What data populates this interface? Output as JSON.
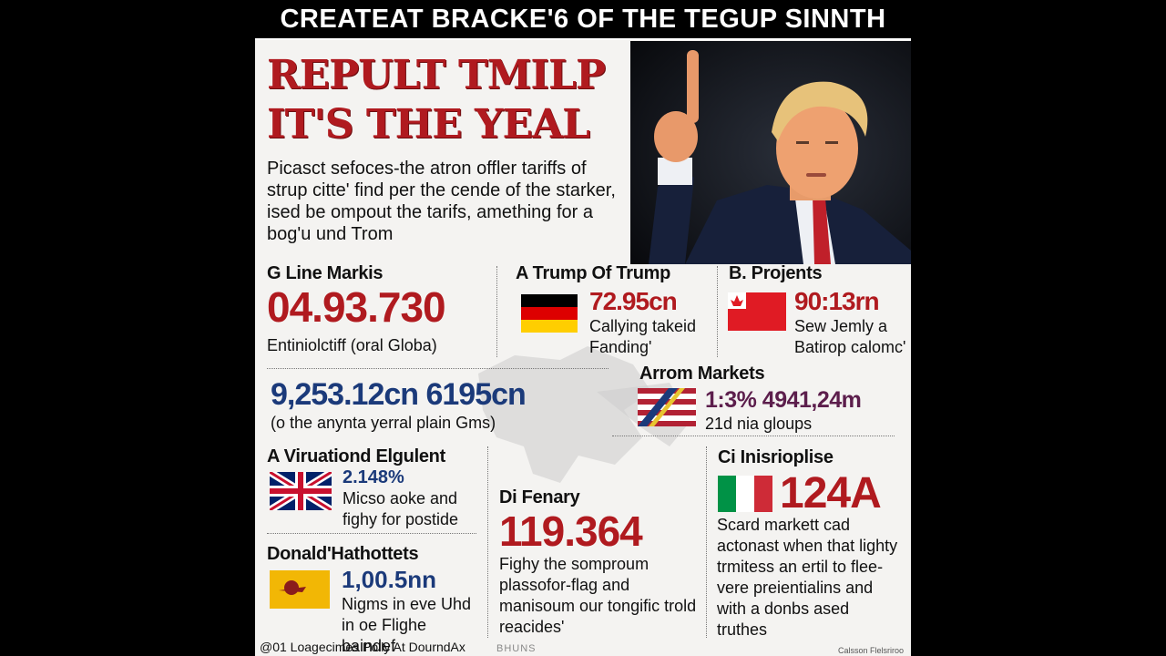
{
  "top_title": "CREATEAT BRACKE'6 OF THE TEGUP SINNTH",
  "headline": {
    "line1": "REPULT TMILP",
    "line2": "IT'S THE  YEAL"
  },
  "intro": "Picasct sefoces-the atron offler tariffs of strup citte' find per the cende of the starker, ised be ompout the tarifs, amething for a bog'u und Trom",
  "sections": {
    "g_line": {
      "heading": "G Line Markis",
      "value": "04.93.730",
      "text": "Entiniolctiff (oral Globa)"
    },
    "a_trump": {
      "heading": "A Trump Of Trump",
      "value": "72.95cn",
      "text": "Callying takeid Fanding'"
    },
    "b_projents": {
      "heading": "B. Projents",
      "value": "90:13rn",
      "text": "Sew Jemly a Batirop calomc'"
    },
    "middle": {
      "value": "9,253.12cn 6195cn",
      "text": "(o the anynta yerral plain Gms)"
    },
    "arrom": {
      "heading": "Arrom Markets",
      "value": "1:3% 4941,24m",
      "text": "21d nia gloups"
    },
    "virationd": {
      "heading": "A Viruationd Elgulent",
      "value": "2.148%",
      "text": "Micso aoke and fighy for postide"
    },
    "di_fenary": {
      "heading": "Di Fenary",
      "value": "119.364",
      "text": "Fighy the somproum plassofor-flag and manisoum our tongific trold reacides'"
    },
    "ci": {
      "heading": "Ci Inisrioplise",
      "value": "124A",
      "text": "Scard markett cad actonast when that lighty trmitess an ertil to flee-vere preientialins and with a donbs ased truthes"
    },
    "donald": {
      "heading": "Donald'Hathottets",
      "value": "1,00.5nn",
      "text": "Nigms in eve Uhd in oe Flighe baindef"
    }
  },
  "footer": {
    "left": "@01 Loagecimes Polly At DourndAx",
    "middle": "BHUNS",
    "right": "Calsson Flelsriroo"
  },
  "colors": {
    "red": "#b01a1f",
    "blue": "#1b3a7a",
    "purple": "#5c1e4c",
    "background": "#f4f3f1"
  },
  "icons": [
    "germany-flag-icon",
    "canada-flag-icon",
    "usa-flag-icon",
    "uk-flag-icon",
    "yellow-flag-icon",
    "italy-flag-icon"
  ]
}
